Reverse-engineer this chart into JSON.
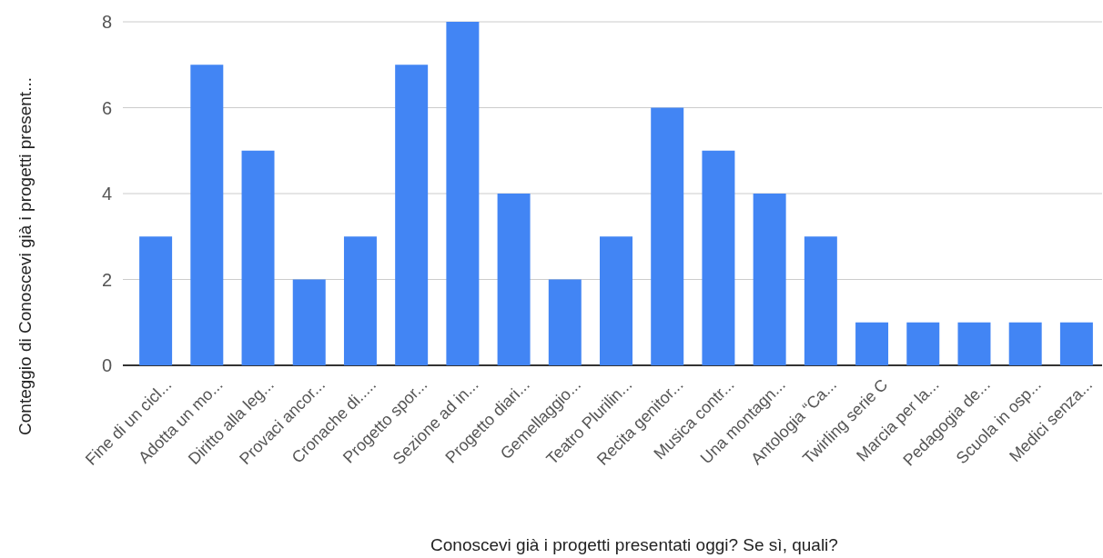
{
  "chart_data": {
    "type": "bar",
    "xlabel": "Conoscevi già i progetti presentati oggi? Se sì, quali?",
    "ylabel": "Conteggio di Conoscevi già i progetti present...",
    "categories": [
      "Fine di un cicl...",
      "Adotta un mo...",
      "Diritto alla leg...",
      "Provaci ancor...",
      "Cronache di.....",
      "Progetto spor...",
      "Sezione ad in...",
      "Progetto diari...",
      "Gemellaggio...",
      "Teatro Plurilin...",
      "Recita genitor...",
      "Musica contr...",
      "Una montagn...",
      "Antologia “Ca...",
      "Twirling serie C",
      "Marcia per la...",
      "Pedagogia de...",
      "Scuola in osp...",
      "Medici senza..."
    ],
    "values": [
      3,
      7,
      5,
      2,
      3,
      7,
      8,
      4,
      2,
      3,
      6,
      5,
      4,
      3,
      1,
      1,
      1,
      1,
      1
    ],
    "color": "#4285f4",
    "ylim": [
      0,
      8
    ],
    "yticks": [
      0,
      2,
      4,
      6,
      8
    ],
    "grid": "y"
  }
}
